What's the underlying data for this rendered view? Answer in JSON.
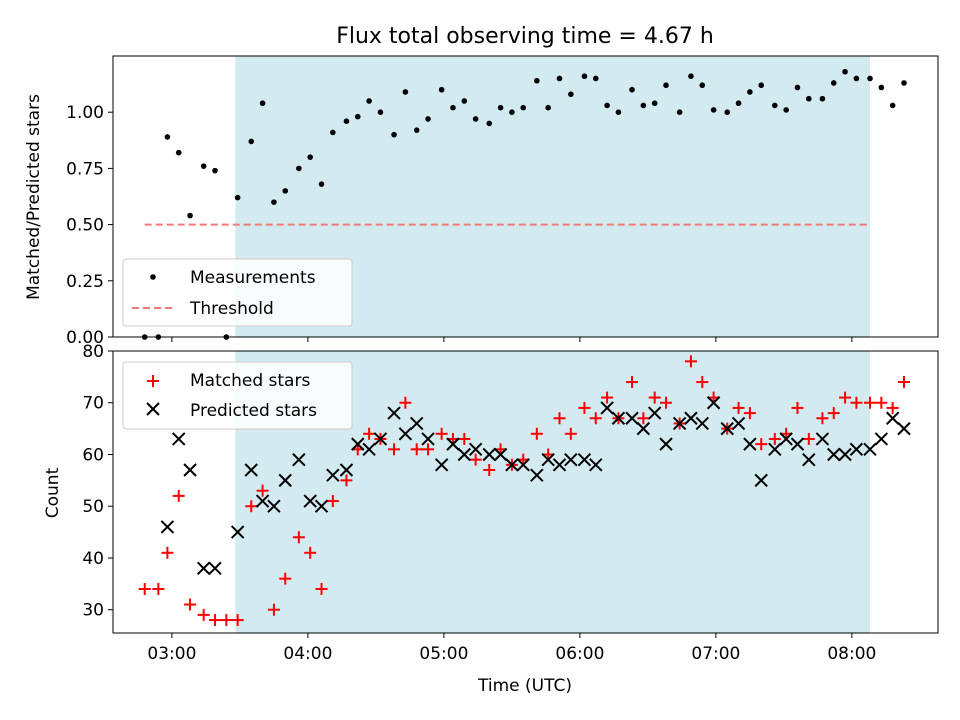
{
  "chart_data": [
    {
      "type": "scatter",
      "title": "Flux total observing time = 4.67 h",
      "xlabel": "",
      "ylabel": "Matched/Predicted stars",
      "ylim": [
        0,
        1.25
      ],
      "yticks": [
        "0.00",
        "0.25",
        "0.50",
        "0.75",
        "1.00"
      ],
      "x_axis": "Time (UTC)",
      "xlim": [
        "02:34",
        "08:38"
      ],
      "shaded_interval": {
        "start": "03:28",
        "end": "08:08",
        "color": "#d3eaf0"
      },
      "legend_position": "lower-left",
      "legend": [
        {
          "label": "Measurements",
          "marker": "dot",
          "color": "#000000"
        },
        {
          "label": "Threshold",
          "marker": "dashed-line",
          "color": "#f07a7a"
        }
      ],
      "threshold": {
        "value": 0.5,
        "x_start": "02:48",
        "x_end": "08:08",
        "color": "#f07a7a"
      },
      "series": [
        {
          "name": "Measurements",
          "color": "#000000",
          "points": [
            [
              "02:48",
              0.0
            ],
            [
              "02:54",
              0.0
            ],
            [
              "02:58",
              0.89
            ],
            [
              "03:03",
              0.82
            ],
            [
              "03:08",
              0.54
            ],
            [
              "03:14",
              0.76
            ],
            [
              "03:19",
              0.74
            ],
            [
              "03:24",
              0.0
            ],
            [
              "03:29",
              0.62
            ],
            [
              "03:35",
              0.87
            ],
            [
              "03:40",
              1.04
            ],
            [
              "03:45",
              0.6
            ],
            [
              "03:50",
              0.65
            ],
            [
              "03:56",
              0.75
            ],
            [
              "04:01",
              0.8
            ],
            [
              "04:06",
              0.68
            ],
            [
              "04:11",
              0.91
            ],
            [
              "04:17",
              0.96
            ],
            [
              "04:22",
              0.98
            ],
            [
              "04:27",
              1.05
            ],
            [
              "04:32",
              1.0
            ],
            [
              "04:38",
              0.9
            ],
            [
              "04:43",
              1.09
            ],
            [
              "04:48",
              0.92
            ],
            [
              "04:53",
              0.97
            ],
            [
              "04:59",
              1.1
            ],
            [
              "05:04",
              1.02
            ],
            [
              "05:09",
              1.05
            ],
            [
              "05:14",
              0.97
            ],
            [
              "05:20",
              0.95
            ],
            [
              "05:25",
              1.02
            ],
            [
              "05:30",
              1.0
            ],
            [
              "05:35",
              1.02
            ],
            [
              "05:41",
              1.14
            ],
            [
              "05:46",
              1.02
            ],
            [
              "05:51",
              1.15
            ],
            [
              "05:56",
              1.08
            ],
            [
              "06:02",
              1.16
            ],
            [
              "06:07",
              1.15
            ],
            [
              "06:12",
              1.03
            ],
            [
              "06:17",
              1.0
            ],
            [
              "06:23",
              1.1
            ],
            [
              "06:28",
              1.03
            ],
            [
              "06:33",
              1.04
            ],
            [
              "06:38",
              1.12
            ],
            [
              "06:44",
              1.0
            ],
            [
              "06:49",
              1.16
            ],
            [
              "06:54",
              1.12
            ],
            [
              "06:59",
              1.01
            ],
            [
              "07:05",
              1.0
            ],
            [
              "07:10",
              1.04
            ],
            [
              "07:15",
              1.09
            ],
            [
              "07:20",
              1.12
            ],
            [
              "07:26",
              1.03
            ],
            [
              "07:31",
              1.01
            ],
            [
              "07:36",
              1.11
            ],
            [
              "07:41",
              1.06
            ],
            [
              "07:47",
              1.06
            ],
            [
              "07:52",
              1.13
            ],
            [
              "07:57",
              1.18
            ],
            [
              "08:02",
              1.15
            ],
            [
              "08:08",
              1.15
            ],
            [
              "08:13",
              1.11
            ],
            [
              "08:18",
              1.03
            ],
            [
              "08:23",
              1.13
            ]
          ]
        }
      ]
    },
    {
      "type": "scatter",
      "title": "",
      "xlabel": "Time (UTC)",
      "ylabel": "Count",
      "ylim": [
        25.5,
        80
      ],
      "yticks": [
        "30",
        "40",
        "50",
        "60",
        "70",
        "80"
      ],
      "xticks": [
        "03:00",
        "04:00",
        "05:00",
        "06:00",
        "07:00",
        "08:00"
      ],
      "xlim": [
        "02:34",
        "08:38"
      ],
      "shaded_interval": {
        "start": "03:28",
        "end": "08:08",
        "color": "#d3eaf0"
      },
      "legend_position": "upper-left",
      "legend": [
        {
          "label": "Matched stars",
          "marker": "plus",
          "color": "#ff0000"
        },
        {
          "label": "Predicted stars",
          "marker": "x",
          "color": "#000000"
        }
      ],
      "series": [
        {
          "name": "Matched stars",
          "color": "#ff0000",
          "marker": "plus",
          "points": [
            [
              "02:48",
              34
            ],
            [
              "02:54",
              34
            ],
            [
              "02:58",
              41
            ],
            [
              "03:03",
              52
            ],
            [
              "03:08",
              31
            ],
            [
              "03:14",
              29
            ],
            [
              "03:19",
              28
            ],
            [
              "03:24",
              28
            ],
            [
              "03:29",
              28
            ],
            [
              "03:35",
              50
            ],
            [
              "03:40",
              53
            ],
            [
              "03:45",
              30
            ],
            [
              "03:50",
              36
            ],
            [
              "03:56",
              44
            ],
            [
              "04:01",
              41
            ],
            [
              "04:06",
              34
            ],
            [
              "04:11",
              51
            ],
            [
              "04:17",
              55
            ],
            [
              "04:22",
              61
            ],
            [
              "04:27",
              64
            ],
            [
              "04:32",
              63
            ],
            [
              "04:38",
              61
            ],
            [
              "04:43",
              70
            ],
            [
              "04:48",
              61
            ],
            [
              "04:53",
              61
            ],
            [
              "04:59",
              64
            ],
            [
              "05:04",
              63
            ],
            [
              "05:09",
              63
            ],
            [
              "05:14",
              59
            ],
            [
              "05:20",
              57
            ],
            [
              "05:25",
              61
            ],
            [
              "05:30",
              58
            ],
            [
              "05:35",
              59
            ],
            [
              "05:41",
              64
            ],
            [
              "05:46",
              60
            ],
            [
              "05:51",
              67
            ],
            [
              "05:56",
              64
            ],
            [
              "06:02",
              69
            ],
            [
              "06:07",
              67
            ],
            [
              "06:12",
              71
            ],
            [
              "06:17",
              67
            ],
            [
              "06:23",
              74
            ],
            [
              "06:28",
              67
            ],
            [
              "06:33",
              71
            ],
            [
              "06:38",
              70
            ],
            [
              "06:44",
              66
            ],
            [
              "06:49",
              78
            ],
            [
              "06:54",
              74
            ],
            [
              "06:59",
              71
            ],
            [
              "07:05",
              65
            ],
            [
              "07:10",
              69
            ],
            [
              "07:15",
              68
            ],
            [
              "07:20",
              62
            ],
            [
              "07:26",
              63
            ],
            [
              "07:31",
              64
            ],
            [
              "07:36",
              69
            ],
            [
              "07:41",
              63
            ],
            [
              "07:47",
              67
            ],
            [
              "07:52",
              68
            ],
            [
              "07:57",
              71
            ],
            [
              "08:02",
              70
            ],
            [
              "08:08",
              70
            ],
            [
              "08:13",
              70
            ],
            [
              "08:18",
              69
            ],
            [
              "08:23",
              74
            ]
          ]
        },
        {
          "name": "Predicted stars",
          "color": "#000000",
          "marker": "x",
          "points": [
            [
              "02:58",
              46
            ],
            [
              "03:03",
              63
            ],
            [
              "03:08",
              57
            ],
            [
              "03:14",
              38
            ],
            [
              "03:19",
              38
            ],
            [
              "03:29",
              45
            ],
            [
              "03:35",
              57
            ],
            [
              "03:40",
              51
            ],
            [
              "03:45",
              50
            ],
            [
              "03:50",
              55
            ],
            [
              "03:56",
              59
            ],
            [
              "04:01",
              51
            ],
            [
              "04:06",
              50
            ],
            [
              "04:11",
              56
            ],
            [
              "04:17",
              57
            ],
            [
              "04:22",
              62
            ],
            [
              "04:27",
              61
            ],
            [
              "04:32",
              63
            ],
            [
              "04:38",
              68
            ],
            [
              "04:43",
              64
            ],
            [
              "04:48",
              66
            ],
            [
              "04:53",
              63
            ],
            [
              "04:59",
              58
            ],
            [
              "05:04",
              62
            ],
            [
              "05:09",
              60
            ],
            [
              "05:14",
              61
            ],
            [
              "05:20",
              60
            ],
            [
              "05:25",
              60
            ],
            [
              "05:30",
              58
            ],
            [
              "05:35",
              58
            ],
            [
              "05:41",
              56
            ],
            [
              "05:46",
              59
            ],
            [
              "05:51",
              58
            ],
            [
              "05:56",
              59
            ],
            [
              "06:02",
              59
            ],
            [
              "06:07",
              58
            ],
            [
              "06:12",
              69
            ],
            [
              "06:17",
              67
            ],
            [
              "06:23",
              67
            ],
            [
              "06:28",
              65
            ],
            [
              "06:33",
              68
            ],
            [
              "06:38",
              62
            ],
            [
              "06:44",
              66
            ],
            [
              "06:49",
              67
            ],
            [
              "06:54",
              66
            ],
            [
              "06:59",
              70
            ],
            [
              "07:05",
              65
            ],
            [
              "07:10",
              66
            ],
            [
              "07:15",
              62
            ],
            [
              "07:20",
              55
            ],
            [
              "07:26",
              61
            ],
            [
              "07:31",
              63
            ],
            [
              "07:36",
              62
            ],
            [
              "07:41",
              59
            ],
            [
              "07:47",
              63
            ],
            [
              "07:52",
              60
            ],
            [
              "07:57",
              60
            ],
            [
              "08:02",
              61
            ],
            [
              "08:08",
              61
            ],
            [
              "08:13",
              63
            ],
            [
              "08:18",
              67
            ],
            [
              "08:23",
              65
            ]
          ]
        }
      ]
    }
  ]
}
